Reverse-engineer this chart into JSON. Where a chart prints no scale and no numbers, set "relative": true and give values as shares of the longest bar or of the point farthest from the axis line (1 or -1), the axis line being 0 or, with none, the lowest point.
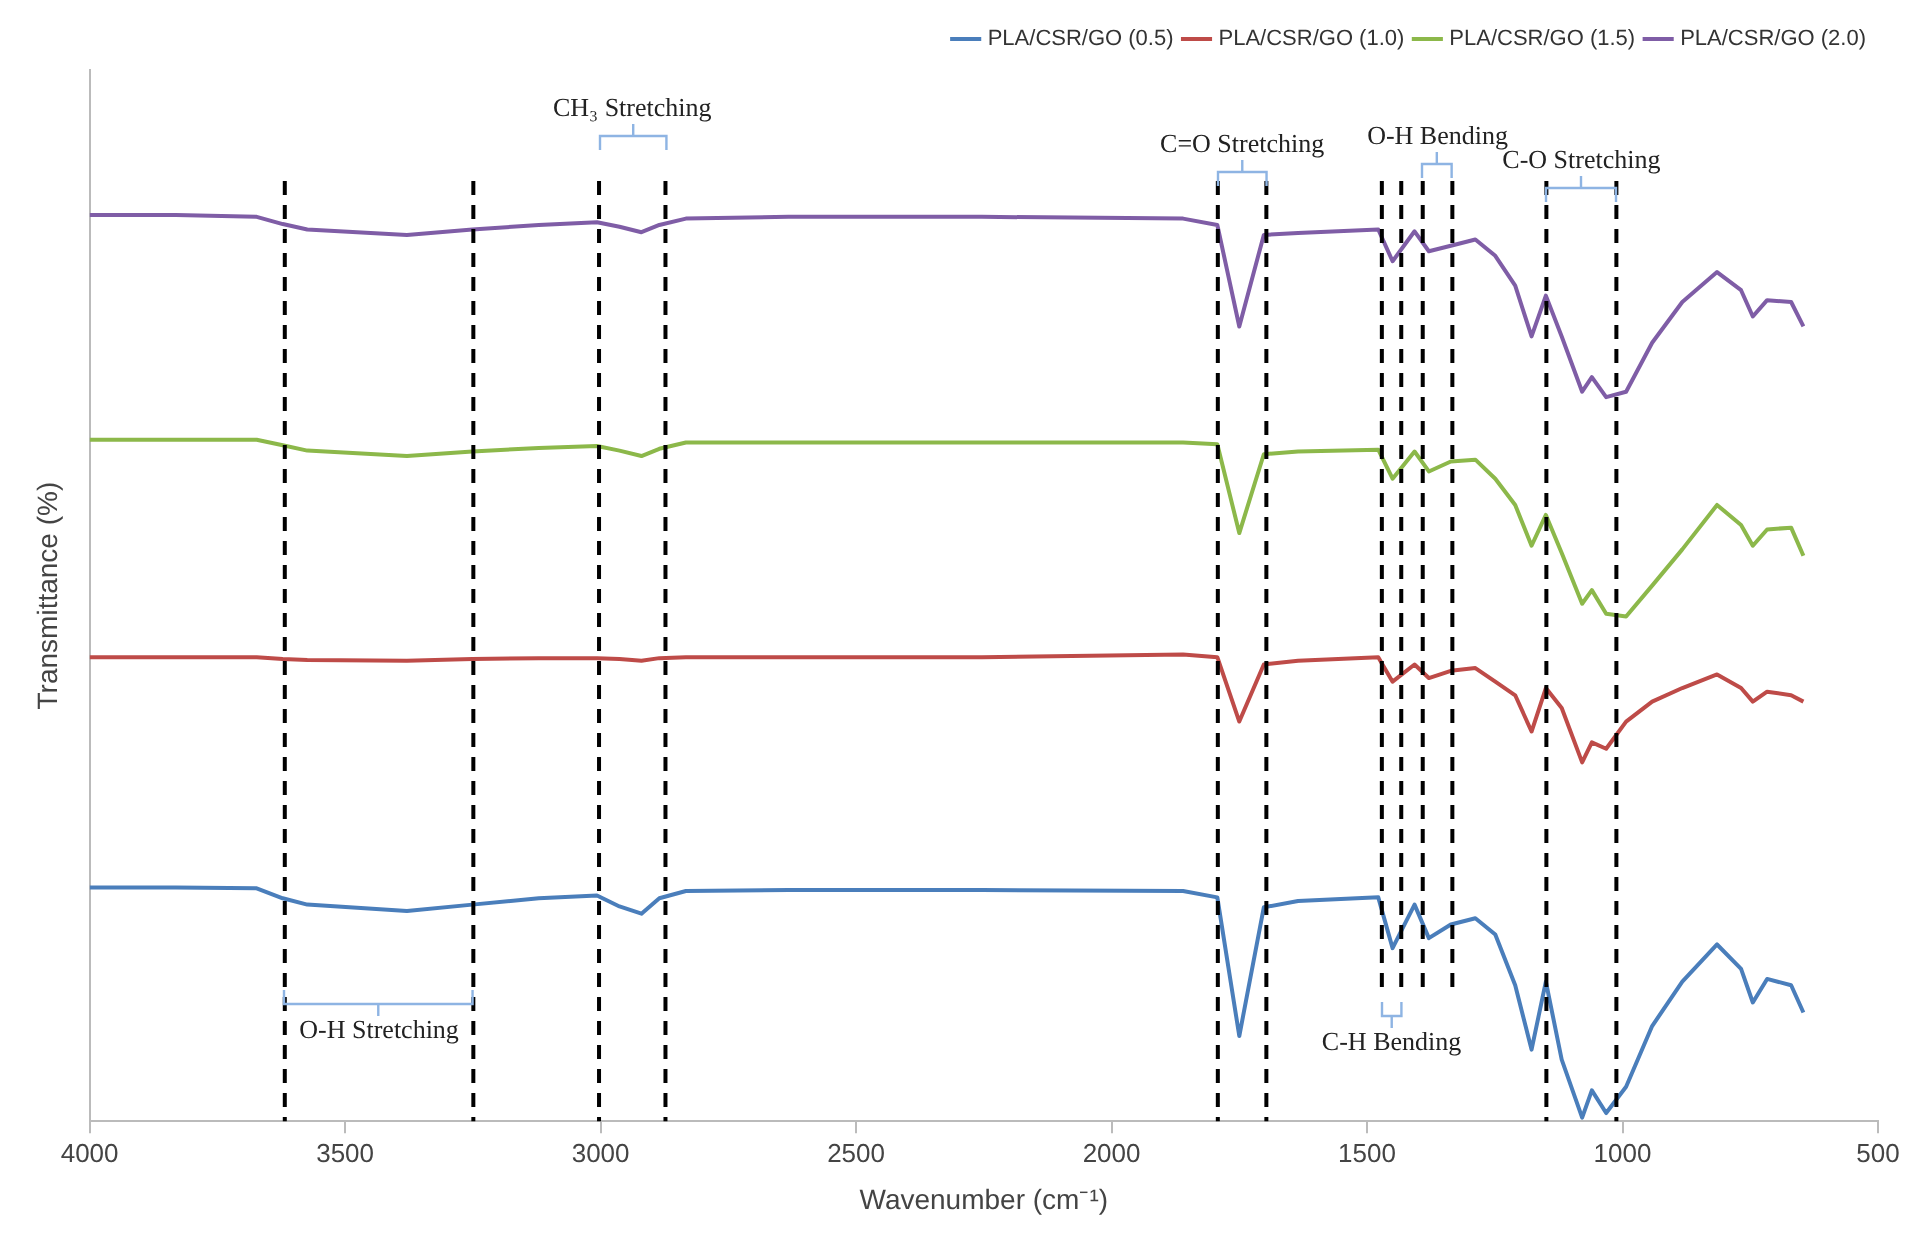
{
  "chart_data": {
    "type": "line",
    "xlabel": "Wavenumber (cm⁻¹)",
    "ylabel": "Transmittance (%)",
    "relative": true,
    "legend": "top right",
    "x": [
      4000,
      3831,
      3673,
      3622,
      3574,
      3379,
      3251,
      3121,
      3007,
      2963,
      2920,
      2885,
      2833,
      2632,
      2254,
      1860,
      1793,
      1750,
      1702,
      1635,
      1478,
      1450,
      1407,
      1379,
      1336,
      1288,
      1249,
      1210,
      1178,
      1150,
      1119,
      1079,
      1060,
      1032,
      993,
      942,
      883,
      815,
      768,
      745,
      717,
      670,
      646
    ],
    "xlim": [
      4000,
      500
    ],
    "xticks": [
      4000,
      3500,
      3000,
      2500,
      2000,
      1500,
      1000,
      500
    ],
    "series": [
      {
        "name": "PLA/CSR/GO (0.5)",
        "color": "#4a7ebb",
        "values": [
          0.258,
          0.258,
          0.257,
          0.246,
          0.239,
          0.232,
          0.239,
          0.246,
          0.249,
          0.237,
          0.229,
          0.246,
          0.254,
          0.255,
          0.255,
          0.254,
          0.247,
          0.094,
          0.236,
          0.243,
          0.247,
          0.191,
          0.239,
          0.202,
          0.217,
          0.224,
          0.206,
          0.15,
          0.079,
          0.154,
          0.068,
          0.004,
          0.034,
          0.009,
          0.038,
          0.105,
          0.154,
          0.195,
          0.168,
          0.131,
          0.157,
          0.15,
          0.12
        ]
      },
      {
        "name": "PLA/CSR/GO (1.0)",
        "color": "#be4b48",
        "values": [
          0.512,
          0.512,
          0.512,
          0.51,
          0.509,
          0.508,
          0.51,
          0.511,
          0.511,
          0.51,
          0.508,
          0.511,
          0.512,
          0.512,
          0.512,
          0.515,
          0.512,
          0.441,
          0.504,
          0.508,
          0.512,
          0.485,
          0.504,
          0.489,
          0.497,
          0.5,
          0.485,
          0.47,
          0.43,
          0.478,
          0.456,
          0.396,
          0.418,
          0.411,
          0.441,
          0.463,
          0.478,
          0.493,
          0.478,
          0.463,
          0.474,
          0.47,
          0.463
        ]
      },
      {
        "name": "PLA/CSR/GO (1.5)",
        "color": "#8cb84a",
        "values": [
          0.752,
          0.752,
          0.752,
          0.746,
          0.74,
          0.734,
          0.739,
          0.743,
          0.745,
          0.74,
          0.734,
          0.742,
          0.749,
          0.749,
          0.749,
          0.749,
          0.747,
          0.649,
          0.736,
          0.739,
          0.741,
          0.709,
          0.739,
          0.717,
          0.728,
          0.73,
          0.709,
          0.68,
          0.635,
          0.669,
          0.627,
          0.571,
          0.586,
          0.56,
          0.557,
          0.591,
          0.631,
          0.68,
          0.658,
          0.635,
          0.653,
          0.655,
          0.624
        ]
      },
      {
        "name": "PLA/CSR/GO (2.0)",
        "color": "#7f5da6",
        "values": [
          1.0,
          1.0,
          0.998,
          0.99,
          0.984,
          0.978,
          0.984,
          0.989,
          0.992,
          0.987,
          0.981,
          0.989,
          0.996,
          0.998,
          0.998,
          0.996,
          0.989,
          0.877,
          0.978,
          0.98,
          0.984,
          0.949,
          0.982,
          0.96,
          0.966,
          0.973,
          0.955,
          0.922,
          0.866,
          0.911,
          0.866,
          0.805,
          0.821,
          0.799,
          0.805,
          0.859,
          0.904,
          0.937,
          0.917,
          0.888,
          0.906,
          0.904,
          0.877
        ]
      }
    ],
    "ref_lines": [
      {
        "axis": "x",
        "value": 3618,
        "color": "#000000",
        "line_style": "dashed"
      },
      {
        "axis": "x",
        "value": 3249,
        "color": "#000000",
        "line_style": "dashed"
      },
      {
        "axis": "x",
        "value": 3003,
        "color": "#000000",
        "line_style": "dashed"
      },
      {
        "axis": "x",
        "value": 2873,
        "color": "#000000",
        "line_style": "dashed"
      },
      {
        "axis": "x",
        "value": 1792,
        "color": "#000000",
        "line_style": "dashed"
      },
      {
        "axis": "x",
        "value": 1697,
        "color": "#000000",
        "line_style": "dashed"
      },
      {
        "axis": "x",
        "value": 1471,
        "color": "#000000",
        "line_style": "dashed"
      },
      {
        "axis": "x",
        "value": 1433,
        "color": "#000000",
        "line_style": "dashed"
      },
      {
        "axis": "x",
        "value": 1391,
        "color": "#000000",
        "line_style": "dashed"
      },
      {
        "axis": "x",
        "value": 1333,
        "color": "#000000",
        "line_style": "dashed"
      },
      {
        "axis": "x",
        "value": 1149,
        "color": "#000000",
        "line_style": "dashed"
      },
      {
        "axis": "x",
        "value": 1012,
        "color": "#000000",
        "line_style": "dashed"
      }
    ],
    "annotations": [
      "O-H Stretching",
      "CH₃ Stretching",
      "C=O Stretching",
      "C-H Bending",
      "O-H Bending",
      "C-O Stretching"
    ]
  }
}
